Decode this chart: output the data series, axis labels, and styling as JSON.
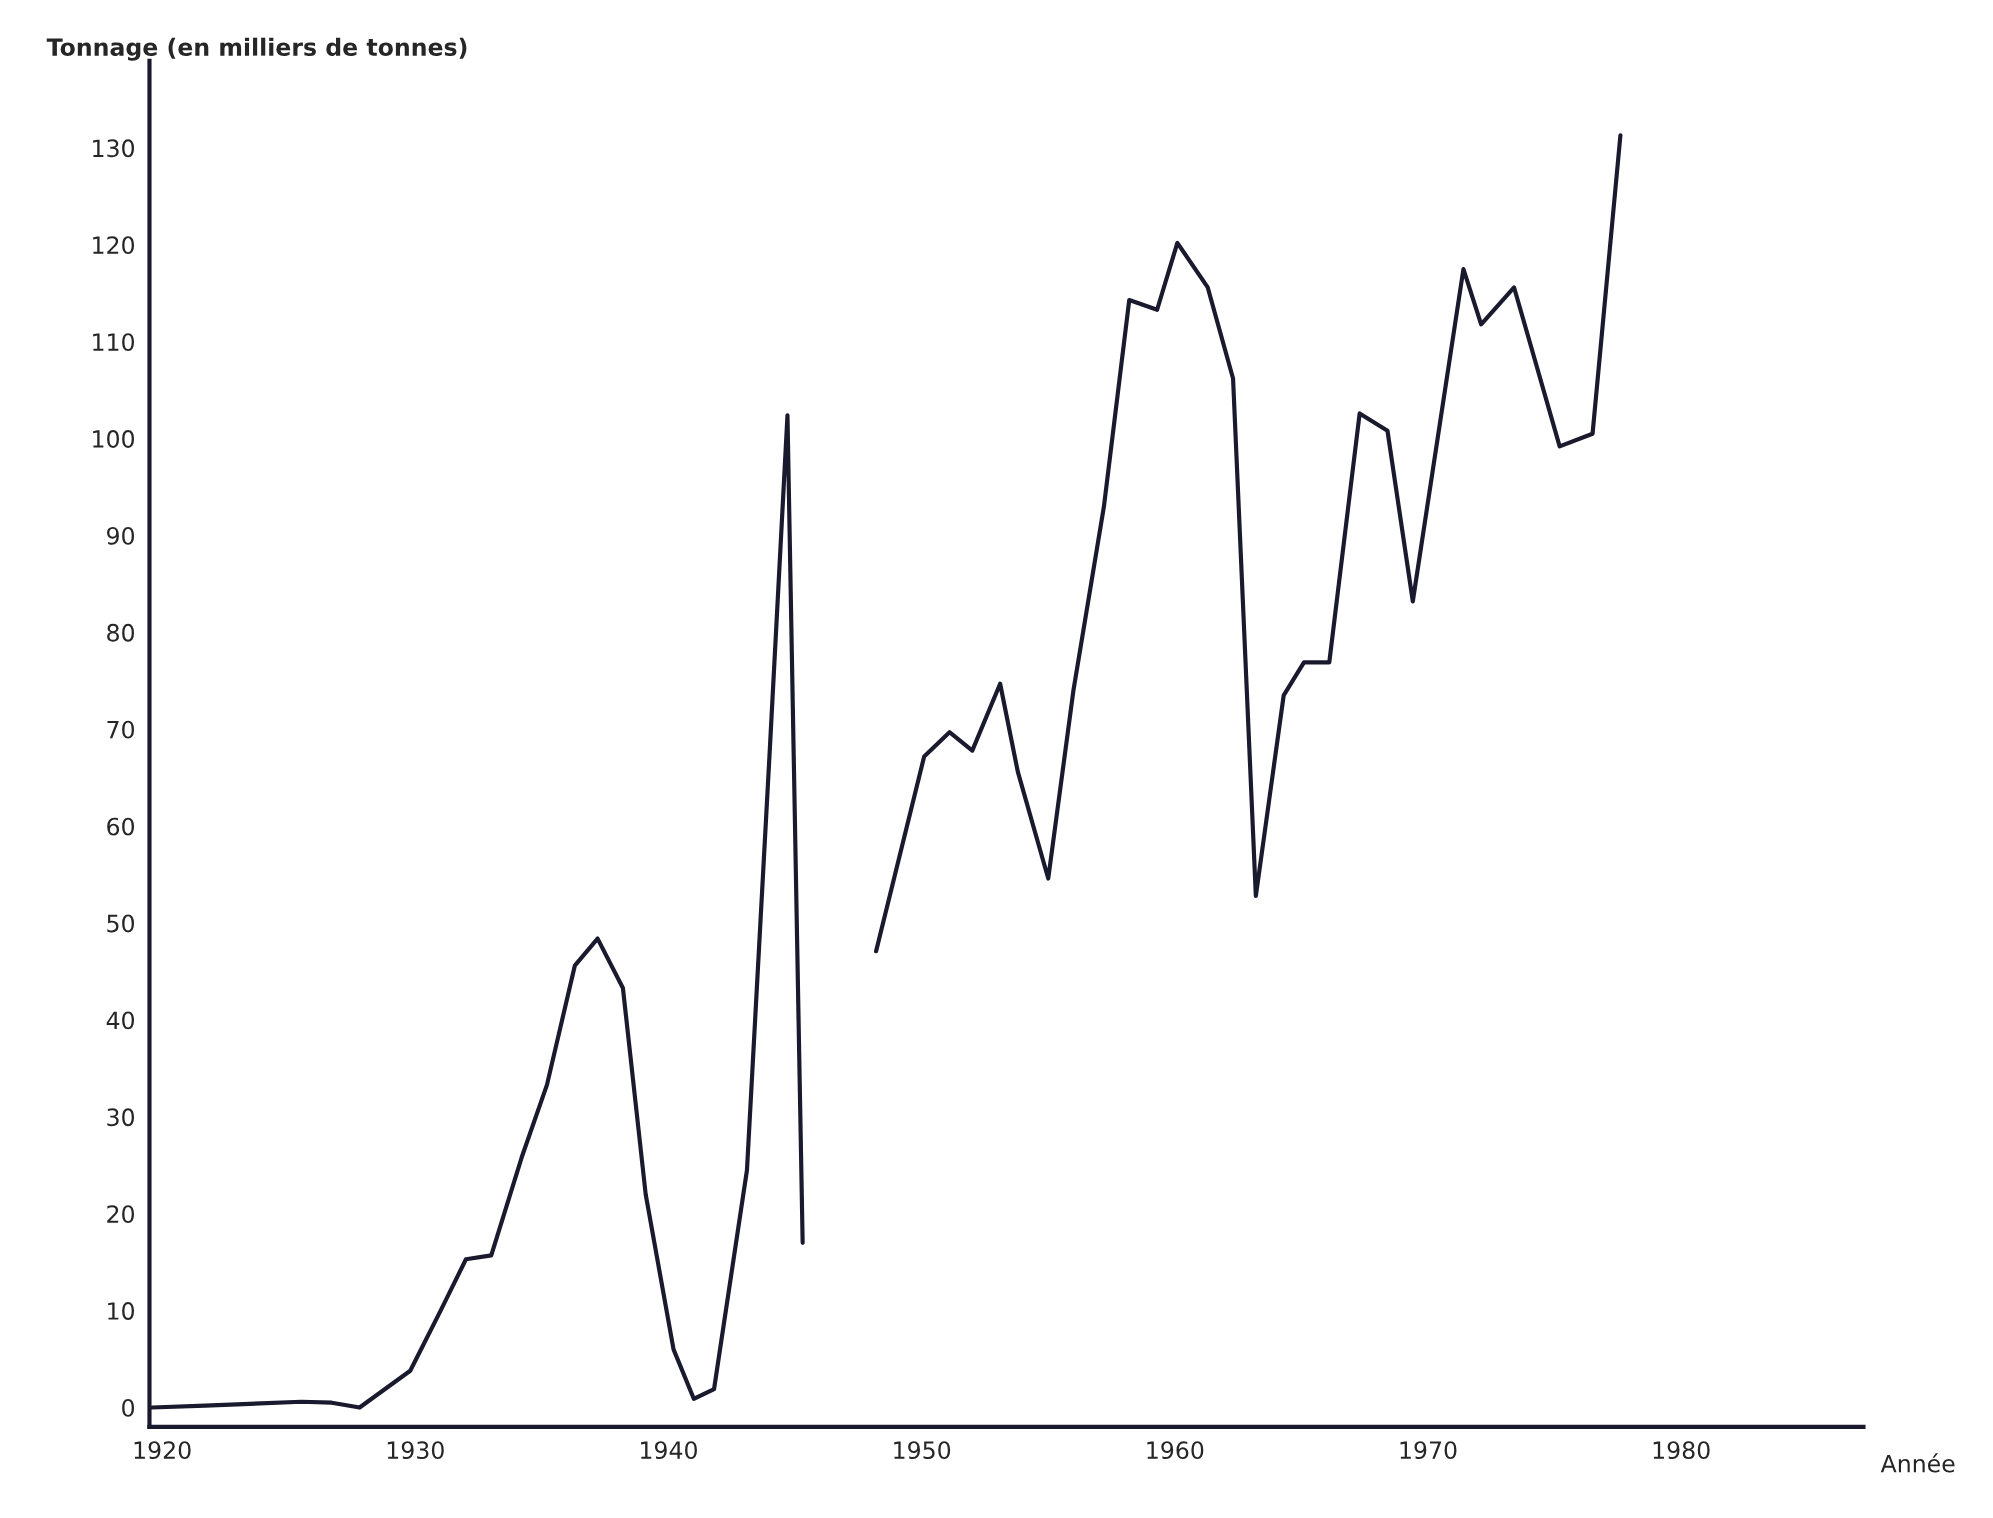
{
  "chart_data": {
    "type": "line",
    "xlabel": "Année",
    "ylabel": "Tonnage (en milliers de tonnes)",
    "x": [
      1919.6,
      1921.7,
      1925.5,
      1926.7,
      1927.8,
      1929.8,
      1931.0,
      1932.0,
      1933.0,
      1934.2,
      1935.2,
      1936.3,
      1937.2,
      1938.2,
      1939.1,
      1940.2,
      1941.0,
      1941.8,
      1943.1,
      1944.0,
      1944.7,
      1945.3,
      1946.8,
      1948.2,
      1950.1,
      1951.1,
      1952.0,
      1953.1,
      1953.8,
      1955.0,
      1956.0,
      1957.2,
      1958.2,
      1959.3,
      1960.1,
      1961.3,
      1962.3,
      1963.2,
      1964.3,
      1965.1,
      1966.1,
      1967.3,
      1968.4,
      1969.4,
      1971.4,
      1972.1,
      1973.4,
      1975.2,
      1976.5,
      1977.6
    ],
    "series": [
      {
        "color": "#1a1a2e",
        "values": [
          0,
          0.2,
          0.6,
          0.5,
          0,
          3.8,
          10,
          15.3,
          15.7,
          25.8,
          33.3,
          45.6,
          48.4,
          43.3,
          22,
          6,
          0.9,
          1.9,
          24.5,
          67.8,
          102.4,
          17,
          null,
          47.1,
          67.2,
          69.7,
          67.8,
          74.7,
          65.6,
          54.6,
          74.1,
          93,
          114.3,
          113.3,
          120.2,
          115.6,
          106.2,
          52.8,
          73.5,
          76.9,
          76.9,
          102.6,
          100.8,
          83.2,
          117.5,
          111.8,
          115.6,
          99.2,
          100.5,
          131.3
        ]
      }
    ],
    "xlim": [
      1919.5,
      1987.2
    ],
    "ylim": [
      -2,
      139
    ],
    "xticks": [
      1920,
      1930,
      1940,
      1950,
      1960,
      1970,
      1980
    ],
    "yticks": [
      0,
      10,
      20,
      30,
      40,
      50,
      60,
      70,
      80,
      90,
      100,
      110,
      120,
      130
    ],
    "grid": false,
    "legend": false,
    "marker": "none",
    "line_style": "solid"
  }
}
